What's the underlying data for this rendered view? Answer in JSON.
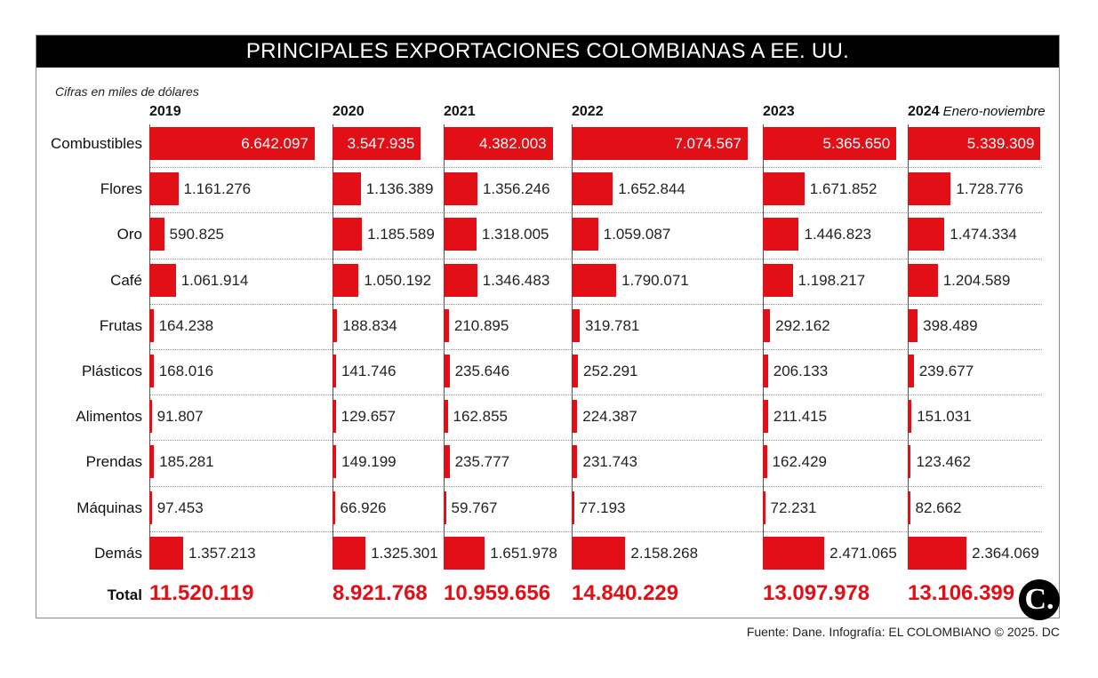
{
  "title": "PRINCIPALES EXPORTACIONES COLOMBIANAS A EE. UU.",
  "subtitle": "Cifras en miles de dólares",
  "source": "Fuente: Dane. Infografía: EL COLOMBIANO © 2025. DC",
  "logo": "C.",
  "total_label": "Total",
  "chart_data": {
    "type": "bar",
    "orientation": "horizontal small multiples",
    "unit": "miles de dólares",
    "categories": [
      "Combustibles",
      "Flores",
      "Oro",
      "Café",
      "Frutas",
      "Plásticos",
      "Alimentos",
      "Prendas",
      "Máquinas",
      "Demás"
    ],
    "series": [
      {
        "name": "2019",
        "note": "",
        "values": [
          6642097,
          1161276,
          590825,
          1061914,
          164238,
          168016,
          91807,
          185281,
          97453,
          1357213
        ],
        "labels": [
          "6.642.097",
          "1.161.276",
          "590.825",
          "1.061.914",
          "164.238",
          "168.016",
          "91.807",
          "185.281",
          "97.453",
          "1.357.213"
        ],
        "total": "11.520.119"
      },
      {
        "name": "2020",
        "note": "",
        "values": [
          3547935,
          1136389,
          1185589,
          1050192,
          188834,
          141746,
          129657,
          149199,
          66926,
          1325301
        ],
        "labels": [
          "3.547.935",
          "1.136.389",
          "1.185.589",
          "1.050.192",
          "188.834",
          "141.746",
          "129.657",
          "149.199",
          "66.926",
          "1.325.301"
        ],
        "total": "8.921.768"
      },
      {
        "name": "2021",
        "note": "",
        "values": [
          4382003,
          1356246,
          1318005,
          1346483,
          210895,
          235646,
          162855,
          235777,
          59767,
          1651978
        ],
        "labels": [
          "4.382.003",
          "1.356.246",
          "1.318.005",
          "1.346.483",
          "210.895",
          "235.646",
          "162.855",
          "235.777",
          "59.767",
          "1.651.978"
        ],
        "total": "10.959.656"
      },
      {
        "name": "2022",
        "note": "",
        "values": [
          7074567,
          1652844,
          1059087,
          1790071,
          319781,
          252291,
          224387,
          231743,
          77193,
          2158268
        ],
        "labels": [
          "7.074.567",
          "1.652.844",
          "1.059.087",
          "1.790.071",
          "319.781",
          "252.291",
          "224.387",
          "231.743",
          "77.193",
          "2.158.268"
        ],
        "total": "14.840.229"
      },
      {
        "name": "2023",
        "note": "",
        "values": [
          5365650,
          1671852,
          1446823,
          1198217,
          292162,
          206133,
          211415,
          162429,
          72231,
          2471065
        ],
        "labels": [
          "5.365.650",
          "1.671.852",
          "1.446.823",
          "1.198.217",
          "292.162",
          "206.133",
          "211.415",
          "162.429",
          "72.231",
          "2.471.065"
        ],
        "total": "13.097.978"
      },
      {
        "name": "2024",
        "note": "Enero-noviembre",
        "values": [
          5339309,
          1728776,
          1474334,
          1204589,
          398489,
          239677,
          151031,
          123462,
          82662,
          2364069
        ],
        "labels": [
          "5.339.309",
          "1.728.776",
          "1.474.334",
          "1.204.589",
          "398.489",
          "239.677",
          "151.031",
          "123.462",
          "82.662",
          "2.364.069"
        ],
        "total": "13.106.399"
      }
    ],
    "colors": {
      "bar": "#e30f17",
      "total": "#e30f17",
      "title_bg": "#000000"
    }
  }
}
